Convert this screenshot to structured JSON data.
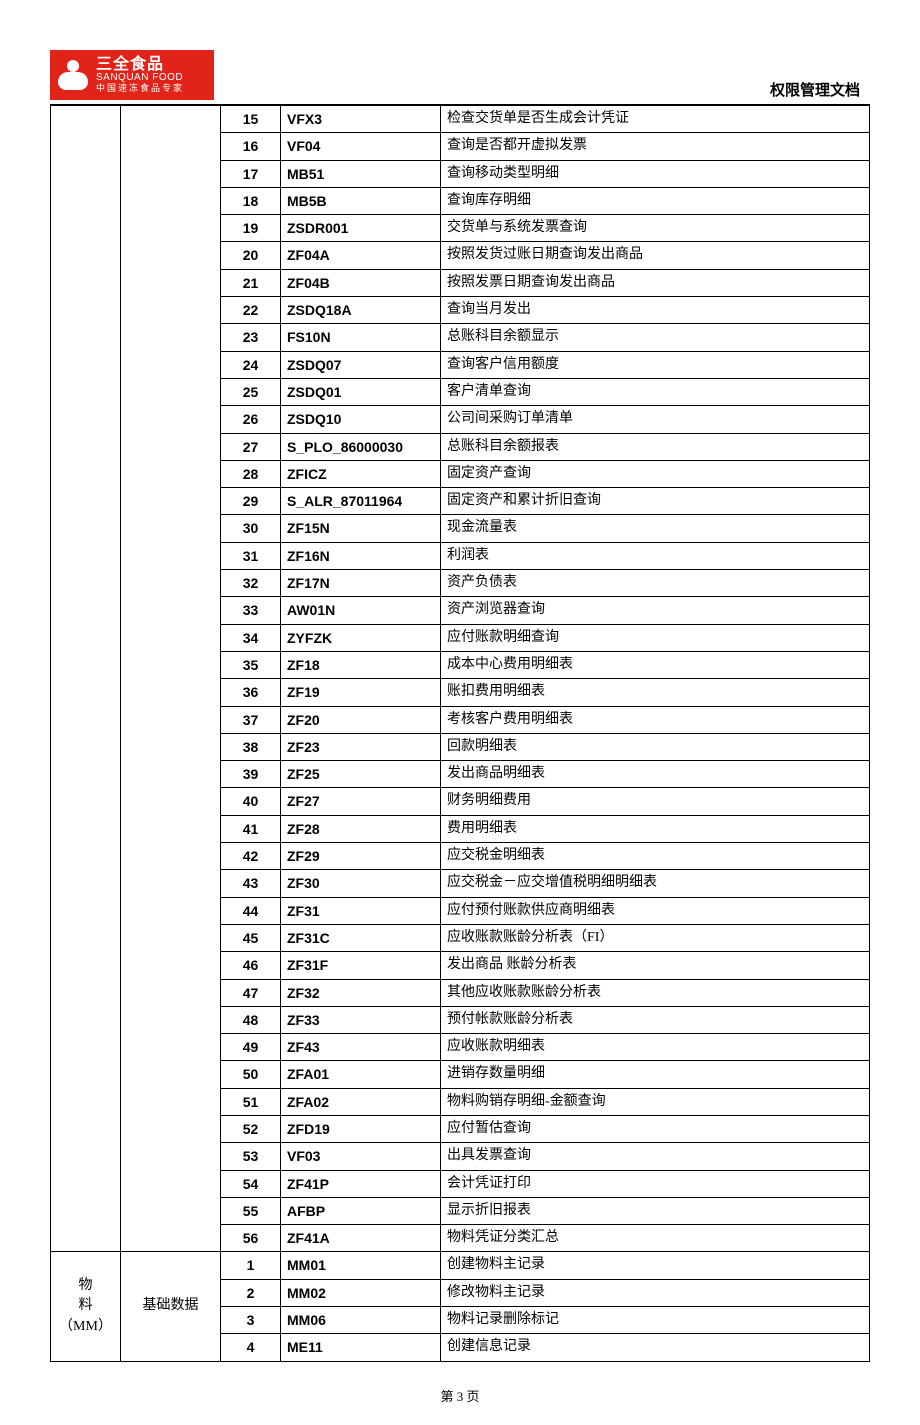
{
  "brand": {
    "name_cn": "三全食品",
    "name_en": "SANQUAN FOOD",
    "tagline": "中国速冻食品专家",
    "bg_color": "#e2231a",
    "fg_color": "#ffffff"
  },
  "doc_title": "权限管理文档",
  "page_footer": "第 3 页",
  "section1_rows": [
    {
      "n": "15",
      "code": "VFX3",
      "desc": "检查交货单是否生成会计凭证"
    },
    {
      "n": "16",
      "code": "VF04",
      "desc": "查询是否都开虚拟发票"
    },
    {
      "n": "17",
      "code": "MB51",
      "desc": "查询移动类型明细"
    },
    {
      "n": "18",
      "code": "MB5B",
      "desc": "查询库存明细"
    },
    {
      "n": "19",
      "code": "ZSDR001",
      "desc": "交货单与系统发票查询"
    },
    {
      "n": "20",
      "code": "ZF04A",
      "desc": "按照发货过账日期查询发出商品"
    },
    {
      "n": "21",
      "code": "ZF04B",
      "desc": "按照发票日期查询发出商品"
    },
    {
      "n": "22",
      "code": "ZSDQ18A",
      "desc": "查询当月发出"
    },
    {
      "n": "23",
      "code": "FS10N",
      "desc": "总账科目余额显示"
    },
    {
      "n": "24",
      "code": "ZSDQ07",
      "desc": "查询客户信用额度"
    },
    {
      "n": "25",
      "code": "ZSDQ01",
      "desc": "客户清单查询"
    },
    {
      "n": "26",
      "code": "ZSDQ10",
      "desc": "公司间采购订单清单"
    },
    {
      "n": "27",
      "code": "S_PLO_86000030",
      "desc": "总账科目余额报表"
    },
    {
      "n": "28",
      "code": "ZFICZ",
      "desc": "固定资产查询"
    },
    {
      "n": "29",
      "code": "S_ALR_87011964",
      "desc": "固定资产和累计折旧查询"
    },
    {
      "n": "30",
      "code": "ZF15N",
      "desc": "现金流量表"
    },
    {
      "n": "31",
      "code": "ZF16N",
      "desc": "利润表"
    },
    {
      "n": "32",
      "code": "ZF17N",
      "desc": "资产负债表"
    },
    {
      "n": "33",
      "code": "AW01N",
      "desc": "资产浏览器查询"
    },
    {
      "n": "34",
      "code": "ZYFZK",
      "desc": "应付账款明细查询"
    },
    {
      "n": "35",
      "code": "ZF18",
      "desc": "成本中心费用明细表"
    },
    {
      "n": "36",
      "code": "ZF19",
      "desc": "账扣费用明细表"
    },
    {
      "n": "37",
      "code": "ZF20",
      "desc": "考核客户费用明细表"
    },
    {
      "n": "38",
      "code": "ZF23",
      "desc": "回款明细表"
    },
    {
      "n": "39",
      "code": "ZF25",
      "desc": "发出商品明细表"
    },
    {
      "n": "40",
      "code": "ZF27",
      "desc": "财务明细费用"
    },
    {
      "n": "41",
      "code": "ZF28",
      "desc": "费用明细表"
    },
    {
      "n": "42",
      "code": "ZF29",
      "desc": "应交税金明细表"
    },
    {
      "n": "43",
      "code": "ZF30",
      "desc": "应交税金－应交增值税明细明细表"
    },
    {
      "n": "44",
      "code": "ZF31",
      "desc": "应付预付账款供应商明细表"
    },
    {
      "n": "45",
      "code": "ZF31C",
      "desc": "应收账款账龄分析表（FI）"
    },
    {
      "n": "46",
      "code": "ZF31F",
      "desc": "发出商品 账龄分析表"
    },
    {
      "n": "47",
      "code": "ZF32",
      "desc": "其他应收账款账龄分析表"
    },
    {
      "n": "48",
      "code": "ZF33",
      "desc": "预付帐款账龄分析表"
    },
    {
      "n": "49",
      "code": "ZF43",
      "desc": "应收账款明细表"
    },
    {
      "n": "50",
      "code": "ZFA01",
      "desc": "进销存数量明细"
    },
    {
      "n": "51",
      "code": "ZFA02",
      "desc": "物料购销存明细-金额查询"
    },
    {
      "n": "52",
      "code": "ZFD19",
      "desc": "应付暂估查询"
    },
    {
      "n": "53",
      "code": "VF03",
      "desc": "出具发票查询"
    },
    {
      "n": "54",
      "code": "ZF41P",
      "desc": "会计凭证打印"
    },
    {
      "n": "55",
      "code": "AFBP",
      "desc": "显示折旧报表"
    },
    {
      "n": "56",
      "code": "ZF41A",
      "desc": "物料凭证分类汇总"
    }
  ],
  "section2": {
    "module_line1": "物",
    "module_line2": "料",
    "module_line3": "（MM）",
    "subcat": "基础数据",
    "rows": [
      {
        "n": "1",
        "code": "MM01",
        "desc": "创建物料主记录"
      },
      {
        "n": "2",
        "code": "MM02",
        "desc": "修改物料主记录"
      },
      {
        "n": "3",
        "code": "MM06",
        "desc": "物料记录删除标记"
      },
      {
        "n": "4",
        "code": "ME11",
        "desc": "创建信息记录"
      }
    ]
  }
}
